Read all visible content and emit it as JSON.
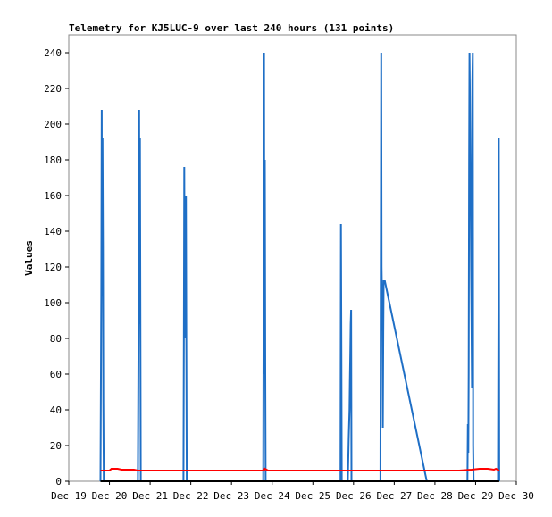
{
  "chart_data": {
    "type": "line",
    "title": "Telemetry for KJ5LUC-9 over last 240 hours (131 points)",
    "xlabel": "",
    "ylabel": "Values",
    "ylim": [
      0,
      250
    ],
    "xlim": [
      0,
      11
    ],
    "x_unit": "days from Dec 19",
    "yticks": [
      0,
      20,
      40,
      60,
      80,
      100,
      120,
      140,
      160,
      180,
      200,
      220,
      240
    ],
    "xticks": [
      {
        "x": 0,
        "label": "Dec 19"
      },
      {
        "x": 1,
        "label": "Dec 20"
      },
      {
        "x": 2,
        "label": "Dec 21"
      },
      {
        "x": 3,
        "label": "Dec 22"
      },
      {
        "x": 4,
        "label": "Dec 23"
      },
      {
        "x": 5,
        "label": "Dec 24"
      },
      {
        "x": 6,
        "label": "Dec 25"
      },
      {
        "x": 7,
        "label": "Dec 26"
      },
      {
        "x": 8,
        "label": "Dec 27"
      },
      {
        "x": 9,
        "label": "Dec 28"
      },
      {
        "x": 10,
        "label": "Dec 29"
      },
      {
        "x": 11,
        "label": "Dec 30"
      }
    ],
    "grid": false,
    "series": [
      {
        "color": "#1f6fc6",
        "points": [
          [
            0.78,
            0
          ],
          [
            0.8,
            104
          ],
          [
            0.81,
            208
          ],
          [
            0.82,
            104
          ],
          [
            0.83,
            192
          ],
          [
            0.84,
            132
          ],
          [
            0.85,
            44
          ],
          [
            0.86,
            0
          ],
          [
            1.7,
            0
          ],
          [
            1.72,
            104
          ],
          [
            1.73,
            208
          ],
          [
            1.74,
            88
          ],
          [
            1.75,
            192
          ],
          [
            1.76,
            88
          ],
          [
            1.77,
            0
          ],
          [
            2.82,
            0
          ],
          [
            2.83,
            88
          ],
          [
            2.84,
            176
          ],
          [
            2.85,
            88
          ],
          [
            2.86,
            160
          ],
          [
            2.87,
            80
          ],
          [
            2.88,
            160
          ],
          [
            2.89,
            80
          ],
          [
            2.9,
            0
          ],
          [
            4.78,
            0
          ],
          [
            4.79,
            120
          ],
          [
            4.8,
            240
          ],
          [
            4.81,
            60
          ],
          [
            4.82,
            180
          ],
          [
            4.83,
            60
          ],
          [
            4.84,
            0
          ],
          [
            6.68,
            0
          ],
          [
            6.69,
            144
          ],
          [
            6.7,
            72
          ],
          [
            6.71,
            0
          ],
          [
            6.86,
            0
          ],
          [
            6.88,
            24
          ],
          [
            6.9,
            40
          ],
          [
            6.91,
            56
          ],
          [
            6.92,
            72
          ],
          [
            6.93,
            88
          ],
          [
            6.94,
            96
          ],
          [
            6.95,
            0
          ],
          [
            7.66,
            0
          ],
          [
            7.67,
            120
          ],
          [
            7.68,
            240
          ],
          [
            7.69,
            120
          ],
          [
            7.71,
            84
          ],
          [
            7.72,
            30
          ],
          [
            7.73,
            84
          ],
          [
            7.74,
            112
          ],
          [
            7.77,
            112
          ],
          [
            8.8,
            0
          ],
          [
            9.8,
            0
          ],
          [
            9.81,
            32
          ],
          [
            9.82,
            16
          ],
          [
            9.83,
            60
          ],
          [
            9.84,
            180
          ],
          [
            9.85,
            240
          ],
          [
            9.86,
            216
          ],
          [
            9.87,
            192
          ],
          [
            9.88,
            156
          ],
          [
            9.89,
            120
          ],
          [
            9.9,
            88
          ],
          [
            9.91,
            52
          ],
          [
            9.92,
            224
          ],
          [
            9.93,
            240
          ],
          [
            9.94,
            20
          ],
          [
            9.95,
            0
          ],
          [
            10.55,
            0
          ],
          [
            10.56,
            96
          ],
          [
            10.57,
            192
          ],
          [
            10.58,
            0
          ]
        ]
      },
      {
        "color": "#ff0000",
        "points": [
          [
            0.78,
            6
          ],
          [
            1.0,
            6
          ],
          [
            1.05,
            7
          ],
          [
            1.2,
            7
          ],
          [
            1.3,
            6.5
          ],
          [
            1.6,
            6.5
          ],
          [
            1.7,
            6
          ],
          [
            2.5,
            6
          ],
          [
            4.0,
            6
          ],
          [
            4.8,
            6
          ],
          [
            4.82,
            7
          ],
          [
            4.9,
            6
          ],
          [
            6.0,
            6
          ],
          [
            7.0,
            6
          ],
          [
            8.0,
            6
          ],
          [
            9.0,
            6
          ],
          [
            9.6,
            6
          ],
          [
            9.9,
            6.5
          ],
          [
            10.1,
            7
          ],
          [
            10.3,
            7
          ],
          [
            10.45,
            6.5
          ],
          [
            10.5,
            7
          ],
          [
            10.58,
            6
          ]
        ]
      },
      {
        "color": "#000000",
        "points": [
          [
            0.78,
            0
          ],
          [
            10.58,
            0
          ]
        ]
      }
    ]
  }
}
